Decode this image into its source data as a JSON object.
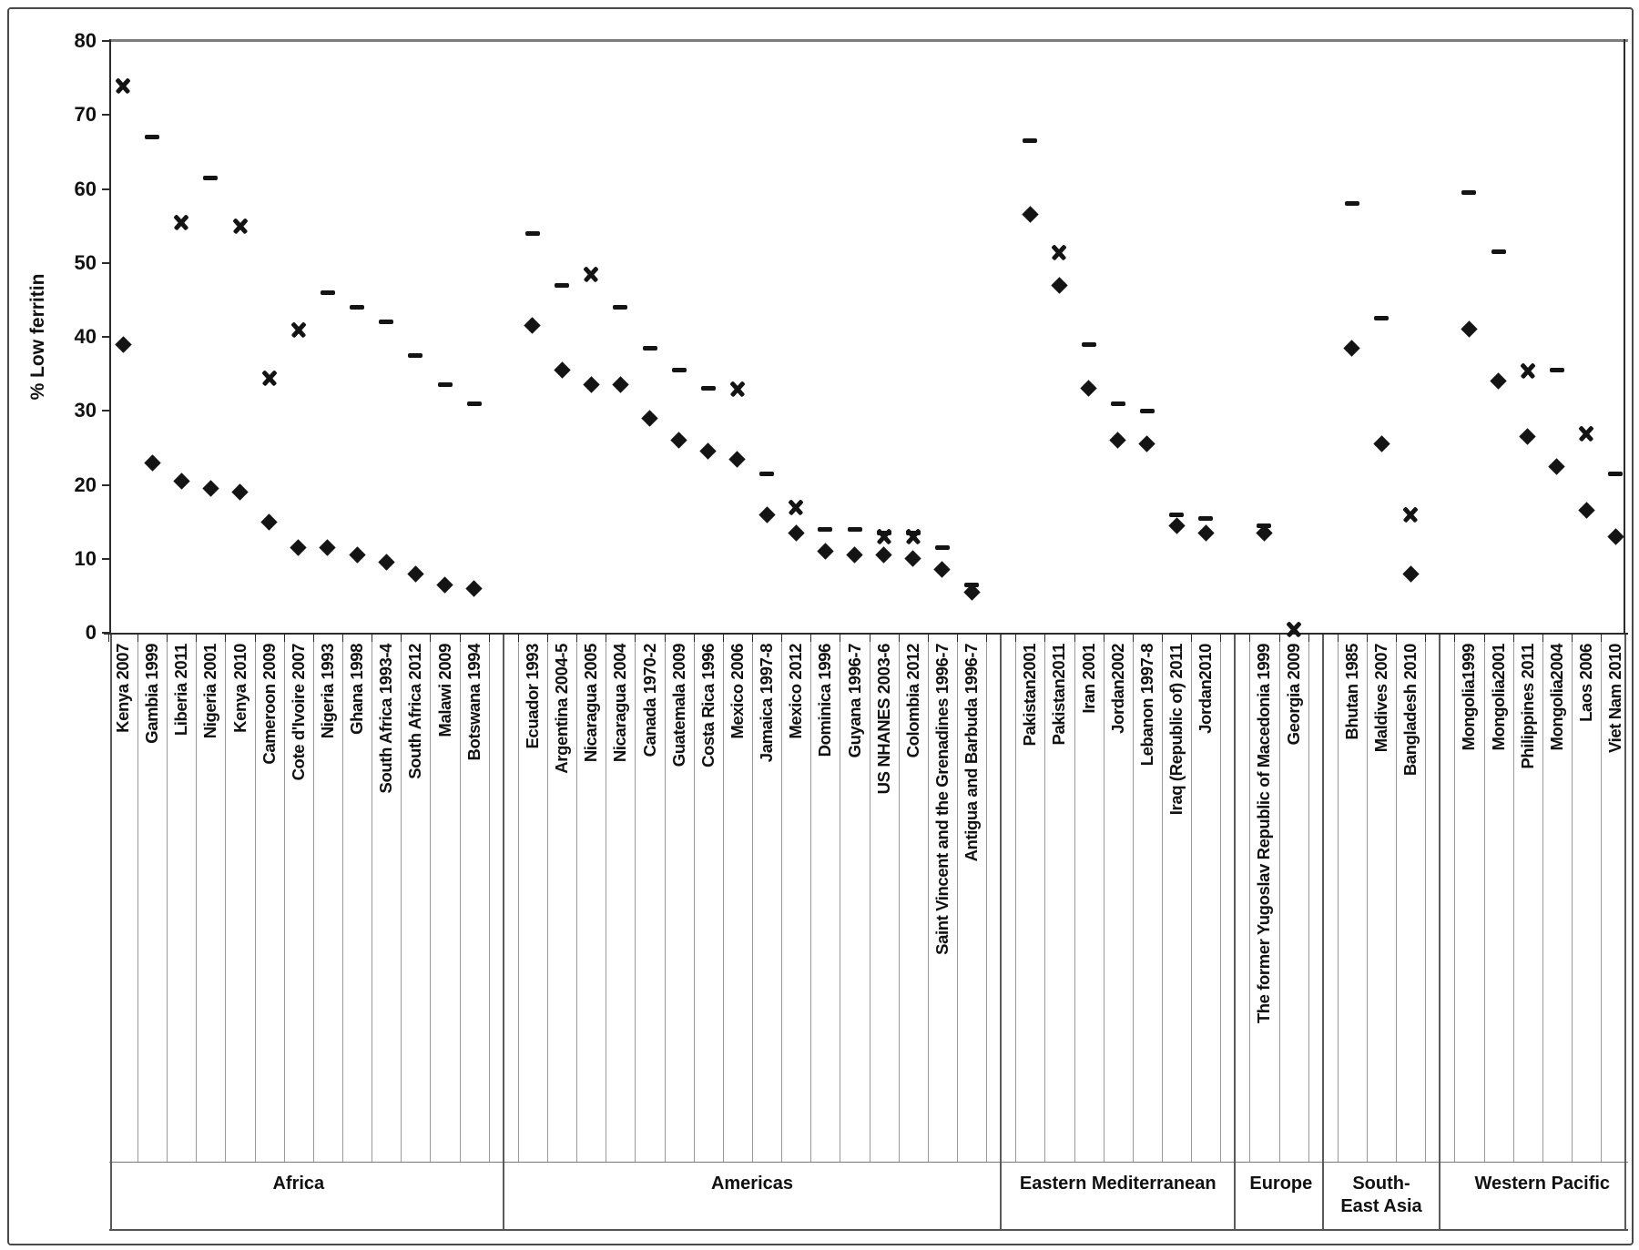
{
  "chart_data": {
    "type": "scatter",
    "title": "",
    "ylabel": "% Low ferritin",
    "xlabel": "",
    "ylim": [
      0,
      80
    ],
    "ytick_step": 10,
    "grid": false,
    "legend": "none",
    "marker_shapes": [
      "diamond",
      "dash",
      "x"
    ],
    "regions": [
      {
        "name": "Africa",
        "points": [
          {
            "country": "Kenya 2007",
            "diamond": 39,
            "x": 74
          },
          {
            "country": "Gambia 1999",
            "diamond": 23,
            "dash": 67
          },
          {
            "country": "Liberia 2011",
            "diamond": 20.5,
            "x": 55.5
          },
          {
            "country": "Nigeria 2001",
            "diamond": 19.5,
            "dash": 61.5
          },
          {
            "country": "Kenya 2010",
            "diamond": 19,
            "x": 55
          },
          {
            "country": "Cameroon 2009",
            "diamond": 15,
            "x": 34.5
          },
          {
            "country": "Cote d'Ivoire 2007",
            "diamond": 11.5,
            "x": 41
          },
          {
            "country": "Nigeria 1993",
            "diamond": 11.5,
            "dash": 46
          },
          {
            "country": "Ghana 1998",
            "diamond": 10.5,
            "dash": 44
          },
          {
            "country": "South Africa 1993-4",
            "diamond": 9.5,
            "dash": 42
          },
          {
            "country": "South Africa 2012",
            "diamond": 8,
            "dash": 37.5
          },
          {
            "country": "Malawi 2009",
            "diamond": 6.5,
            "dash": 33.5
          },
          {
            "country": "Botswana 1994",
            "diamond": 6,
            "dash": 31
          }
        ]
      },
      {
        "name": "Americas",
        "points": [
          {
            "country": "Ecuador 1993",
            "diamond": 41.5,
            "dash": 54
          },
          {
            "country": "Argentina 2004-5",
            "diamond": 35.5,
            "dash": 47
          },
          {
            "country": "Nicaragua 2005",
            "diamond": 33.5,
            "x": 48.5
          },
          {
            "country": "Nicaragua 2004",
            "diamond": 33.5,
            "dash": 44
          },
          {
            "country": "Canada 1970-2",
            "diamond": 29,
            "dash": 38.5
          },
          {
            "country": "Guatemala 2009",
            "diamond": 26,
            "dash": 35.5
          },
          {
            "country": "Costa Rica 1996",
            "diamond": 24.5,
            "dash": 33
          },
          {
            "country": "Mexico 2006",
            "diamond": 23.5,
            "x": 33
          },
          {
            "country": "Jamaica 1997-8",
            "diamond": 16,
            "dash": 21.5
          },
          {
            "country": "Mexico 2012",
            "diamond": 13.5,
            "x": 17
          },
          {
            "country": "Dominica 1996",
            "diamond": 11,
            "dash": 14
          },
          {
            "country": "Guyana 1996-7",
            "diamond": 10.5,
            "dash": 14
          },
          {
            "country": "US NHANES 2003-6",
            "diamond": 10.5,
            "x": 13,
            "dash": 13.5
          },
          {
            "country": "Colombia 2012",
            "diamond": 10,
            "x": 13,
            "dash": 13.5
          },
          {
            "country": "Saint Vincent and the Grenadines 1996-7",
            "diamond": 8.5,
            "dash": 11.5
          },
          {
            "country": "Antigua and Barbuda 1996-7",
            "diamond": 5.5,
            "dash": 6.5
          }
        ]
      },
      {
        "name": "Eastern Mediterranean",
        "points": [
          {
            "country": "Pakistan2001",
            "diamond": 56.5,
            "dash": 66.5
          },
          {
            "country": "Pakistan2011",
            "diamond": 47,
            "x": 51.5
          },
          {
            "country": "Iran 2001",
            "diamond": 33,
            "dash": 39
          },
          {
            "country": "Jordan2002",
            "diamond": 26,
            "dash": 31
          },
          {
            "country": "Lebanon 1997-8",
            "diamond": 25.5,
            "dash": 30
          },
          {
            "country": "Iraq (Republic of) 2011",
            "diamond": 14.5,
            "dash": 16
          },
          {
            "country": "Jordan2010",
            "diamond": 13.5,
            "dash": 15.5
          }
        ]
      },
      {
        "name": "Europe",
        "points": [
          {
            "country": "The former Yugoslav Republic of Macedonia 1999",
            "diamond": 13.5,
            "dash": 14.5
          },
          {
            "country": "Georgia 2009",
            "x": 0.5
          }
        ]
      },
      {
        "name": "South-East Asia",
        "points": [
          {
            "country": "Bhutan 1985",
            "diamond": 38.5,
            "dash": 58
          },
          {
            "country": "Maldives 2007",
            "diamond": 25.5,
            "dash": 42.5
          },
          {
            "country": "Bangladesh 2010",
            "diamond": 8,
            "x": 16
          }
        ]
      },
      {
        "name": "Western Pacific",
        "points": [
          {
            "country": "Mongolia1999",
            "diamond": 41,
            "dash": 59.5
          },
          {
            "country": "Mongolia2001",
            "diamond": 34,
            "dash": 51.5
          },
          {
            "country": "Philippines 2011",
            "diamond": 26.5,
            "x": 35.5
          },
          {
            "country": "Mongolia2004",
            "diamond": 22.5,
            "dash": 35.5
          },
          {
            "country": "Laos 2006",
            "diamond": 16.5,
            "x": 27
          },
          {
            "country": "Viet Nam 2010",
            "diamond": 13,
            "dash": 21.5
          }
        ]
      }
    ]
  }
}
